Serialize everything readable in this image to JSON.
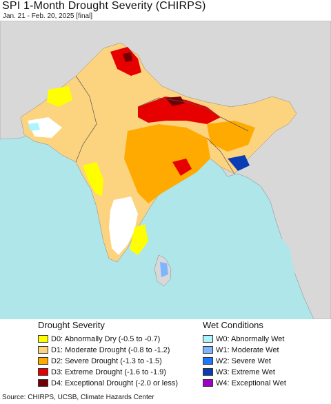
{
  "header": {
    "title": "SPI 1-Month Drought Severity (CHIRPS)",
    "subtitle": "Jan. 21 - Feb. 20, 2025 [final]"
  },
  "legend": {
    "drought": {
      "title": "Drought Severity",
      "items": [
        {
          "label": "D0: Abnormally Dry (-0.5 to -0.7)",
          "color": "#ffff00"
        },
        {
          "label": "D1: Moderate Drought (-0.8 to -1.2)",
          "color": "#fcd37f"
        },
        {
          "label": "D2: Severe Drought (-1.3 to -1.5)",
          "color": "#ffaa00"
        },
        {
          "label": "D3: Extreme Drought (-1.6 to -1.9)",
          "color": "#e60000"
        },
        {
          "label": "D4: Exceptional Drought (-2.0 or less)",
          "color": "#730000"
        }
      ]
    },
    "wet": {
      "title": "Wet Conditions",
      "items": [
        {
          "label": "W0: Abnormally Wet",
          "color": "#aaf5ff"
        },
        {
          "label": "W1: Moderate Wet",
          "color": "#7fb4ff"
        },
        {
          "label": "W2: Severe Wet",
          "color": "#1e78ff"
        },
        {
          "label": "W3: Extreme Wet",
          "color": "#0a3cb4"
        },
        {
          "label": "W4: Exceptional Wet",
          "color": "#a000c8"
        }
      ]
    }
  },
  "map": {
    "water_color": "#aee6ea",
    "outside_land_color": "#d8d8d8",
    "no_drought_land_color": "#ffffff"
  },
  "footer": {
    "source": "Source: CHIRPS, UCSB, Climate Hazards Center"
  }
}
